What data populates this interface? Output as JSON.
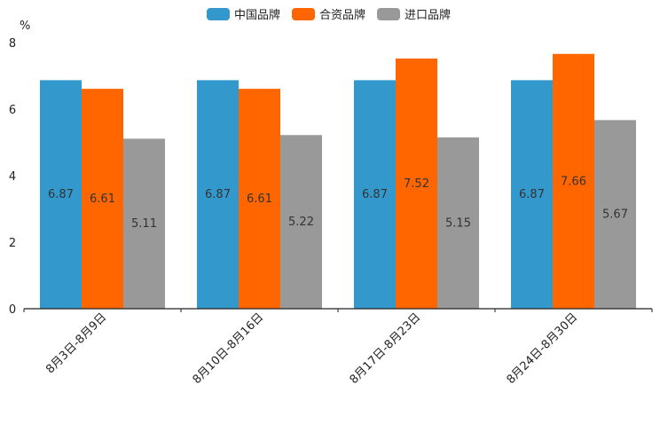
{
  "chart_data": {
    "type": "bar",
    "title": "",
    "xlabel": "",
    "ylabel": "%",
    "ylim": [
      0,
      8
    ],
    "yticks": [
      0,
      2,
      4,
      6,
      8
    ],
    "grid": false,
    "legend_position": "top-center",
    "categories": [
      "8月3日-8月9日",
      "8月10日-8月16日",
      "8月17日-8月23日",
      "8月24日-8月30日"
    ],
    "series": [
      {
        "name": "中国品牌",
        "color": "#3399cc",
        "values": [
          6.87,
          6.87,
          6.87,
          6.87
        ]
      },
      {
        "name": "合资品牌",
        "color": "#ff6600",
        "values": [
          6.61,
          6.61,
          7.52,
          7.66
        ]
      },
      {
        "name": "进口品牌",
        "color": "#999999",
        "values": [
          5.11,
          5.22,
          5.15,
          5.67
        ]
      }
    ]
  }
}
